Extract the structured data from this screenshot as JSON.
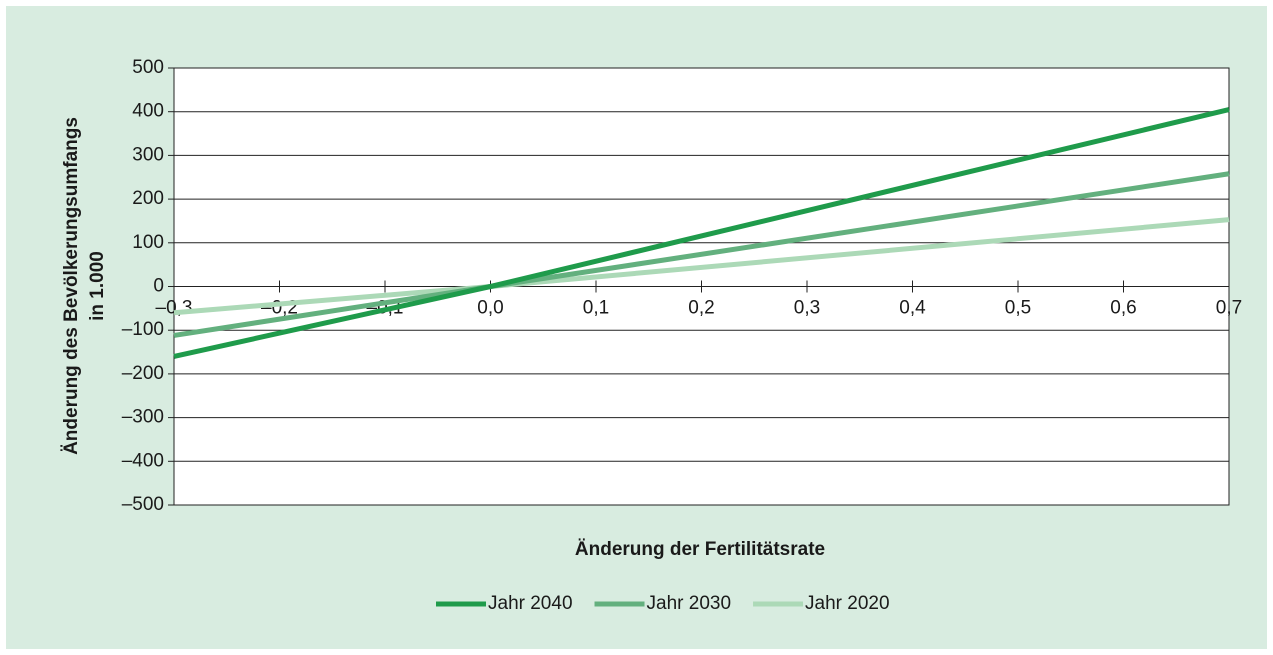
{
  "chart_data": {
    "type": "line",
    "xlabel": "Änderung der Fertilitätsrate",
    "ylabel": [
      "Änderung des Bevölkerungsumfangs",
      "in 1.000"
    ],
    "x": [
      -0.3,
      0,
      0.7
    ],
    "series": [
      {
        "name": "Jahr 2040",
        "color": "#1f9b4b",
        "values": [
          -160,
          0,
          405
        ]
      },
      {
        "name": "Jahr 2030",
        "color": "#63b07e",
        "values": [
          -112,
          0,
          258
        ]
      },
      {
        "name": "Jahr 2020",
        "color": "#acd9b7",
        "values": [
          -60,
          0,
          153
        ]
      }
    ],
    "xlim": [
      -0.3,
      0.7
    ],
    "xticks": [
      {
        "value": -0.3,
        "label": "–0,3"
      },
      {
        "value": -0.2,
        "label": "–0,2"
      },
      {
        "value": -0.1,
        "label": "–0,1"
      },
      {
        "value": 0,
        "label": "0,0"
      },
      {
        "value": 0.1,
        "label": "0,1"
      },
      {
        "value": 0.2,
        "label": "0,2"
      },
      {
        "value": 0.3,
        "label": "0,3"
      },
      {
        "value": 0.4,
        "label": "0,4"
      },
      {
        "value": 0.5,
        "label": "0,5"
      },
      {
        "value": 0.6,
        "label": "0,6"
      },
      {
        "value": 0.7,
        "label": "0,7"
      }
    ],
    "ylim": [
      -500,
      500
    ],
    "yticks": [
      {
        "value": -500,
        "label": "–500"
      },
      {
        "value": -400,
        "label": "–400"
      },
      {
        "value": -300,
        "label": "–300"
      },
      {
        "value": -200,
        "label": "–200"
      },
      {
        "value": -100,
        "label": "–100"
      },
      0,
      100,
      200,
      300,
      400,
      500
    ],
    "grid": true,
    "legend": "bottom"
  }
}
